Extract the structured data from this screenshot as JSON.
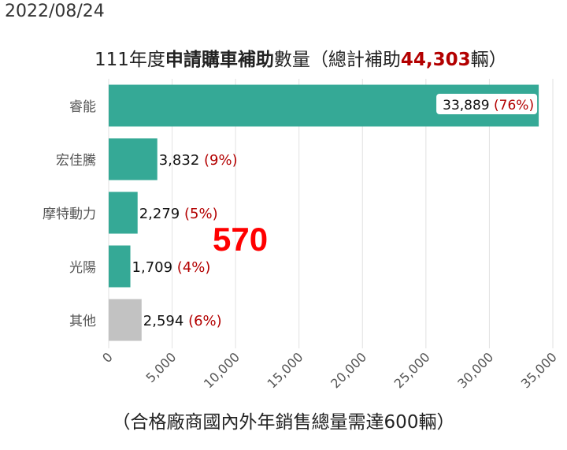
{
  "date": "2022/08/24",
  "title": {
    "part1": "111年度",
    "part2": "申請購車補助",
    "part3": "數量（總計補助",
    "total": "44,303",
    "part4": "輛）"
  },
  "stamp": "570",
  "colors": {
    "bar": "#35a996",
    "other_bar": "#c2c2c2",
    "pct": "#b30000",
    "grid": "#e2e2e2"
  },
  "chart_data": {
    "type": "bar",
    "orientation": "horizontal",
    "categories": [
      "睿能",
      "宏佳騰",
      "摩特動力",
      "光陽",
      "其他"
    ],
    "values": [
      33889,
      3832,
      2279,
      1709,
      2594
    ],
    "value_labels": [
      "33,889",
      "3,832",
      "2,279",
      "1,709",
      "2,594"
    ],
    "percent_labels": [
      "(76%)",
      "(9%)",
      "(5%)",
      "(4%)",
      "(6%)"
    ],
    "xlim": [
      0,
      35000
    ],
    "xticks": [
      0,
      5000,
      10000,
      15000,
      20000,
      25000,
      30000,
      35000
    ],
    "xtick_labels": [
      "0",
      "5,000",
      "10,000",
      "15,000",
      "20,000",
      "25,000",
      "30,000",
      "35,000"
    ],
    "xlabel": "（合格廠商國內外年銷售總量需達600輛）",
    "grid": true
  }
}
